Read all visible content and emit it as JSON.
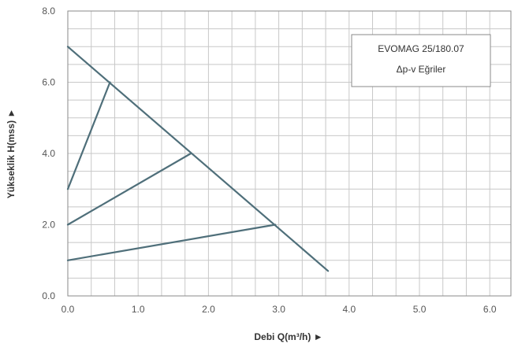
{
  "chart_data": {
    "type": "line",
    "xlabel": "Debi Q(m³/h) ►",
    "ylabel": "Yükseklik H(mss) ►",
    "xlim": [
      0,
      6.3
    ],
    "ylim": [
      0,
      8
    ],
    "x_ticks": [
      "0.0",
      "1.0",
      "2.0",
      "3.0",
      "4.0",
      "5.0",
      "6.0"
    ],
    "x_tick_values": [
      0,
      1,
      2,
      3,
      4,
      5,
      6
    ],
    "y_ticks": [
      "0.0",
      "2.0",
      "4.0",
      "6.0",
      "8.0"
    ],
    "y_tick_values": [
      0,
      2,
      4,
      6,
      8
    ],
    "grid": true,
    "grid_x_step": 0.3333,
    "grid_y_step": 0.5,
    "legend_box": {
      "line1": "EVOMAG 25/180.07",
      "line2": "Δp-v Eğriler",
      "placement": "top-right"
    },
    "line_color": "#4f6f7a",
    "series": [
      {
        "values": [
          [
            0,
            7.0
          ],
          [
            3.7,
            0.7
          ]
        ]
      },
      {
        "values": [
          [
            0,
            3.0
          ],
          [
            0.6,
            6.0
          ]
        ]
      },
      {
        "values": [
          [
            0,
            2.0
          ],
          [
            1.75,
            4.0
          ]
        ]
      },
      {
        "values": [
          [
            0,
            1.0
          ],
          [
            2.95,
            2.0
          ]
        ]
      }
    ]
  }
}
